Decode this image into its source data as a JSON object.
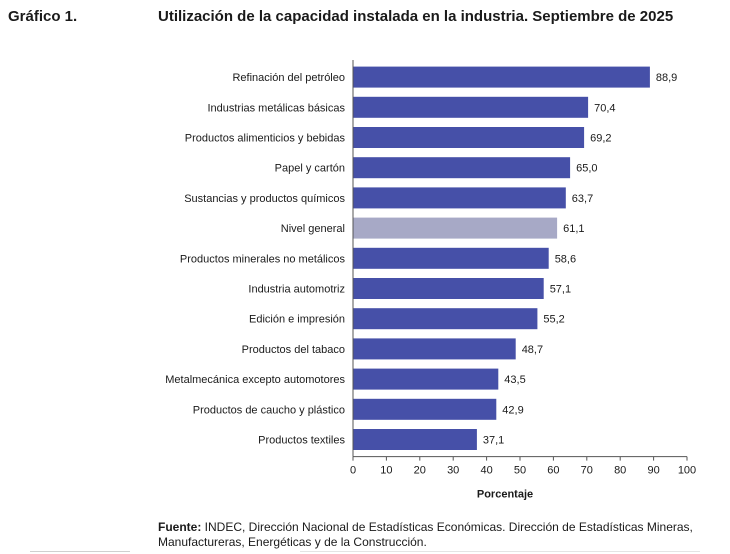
{
  "header": {
    "label": "Gráfico 1.",
    "title": "Utilización de la capacidad instalada en la industria. Septiembre de 2025"
  },
  "chart_data": {
    "type": "bar",
    "orientation": "horizontal",
    "categories": [
      "Refinación del petróleo",
      "Industrias metálicas básicas",
      "Productos alimenticios y bebidas",
      "Papel y cartón",
      "Sustancias y productos químicos",
      "Nivel general",
      "Productos minerales no metálicos",
      "Industria automotriz",
      "Edición e impresión",
      "Productos del tabaco",
      "Metalmecánica excepto automotores",
      "Productos de caucho y plástico",
      "Productos textiles"
    ],
    "values": [
      88.9,
      70.4,
      69.2,
      65.0,
      63.7,
      61.1,
      58.6,
      57.1,
      55.2,
      48.7,
      43.5,
      42.9,
      37.1
    ],
    "value_labels": [
      "88,9",
      "70,4",
      "69,2",
      "65,0",
      "63,7",
      "61,1",
      "58,6",
      "57,1",
      "55,2",
      "48,7",
      "43,5",
      "42,9",
      "37,1"
    ],
    "highlight": "Nivel general",
    "xlabel": "Porcentaje",
    "xlim": [
      0,
      100
    ],
    "xticks": [
      0,
      10,
      20,
      30,
      40,
      50,
      60,
      70,
      80,
      90,
      100
    ],
    "colors": {
      "bar": "#4650a8",
      "highlight": "#a7a9c6"
    }
  },
  "footer": {
    "source_label": "Fuente:",
    "source_text": " INDEC, Dirección Nacional de Estadísticas Económicas. Dirección de Estadísticas Mineras, Manufactureras, Energéticas y de la Construcción."
  }
}
